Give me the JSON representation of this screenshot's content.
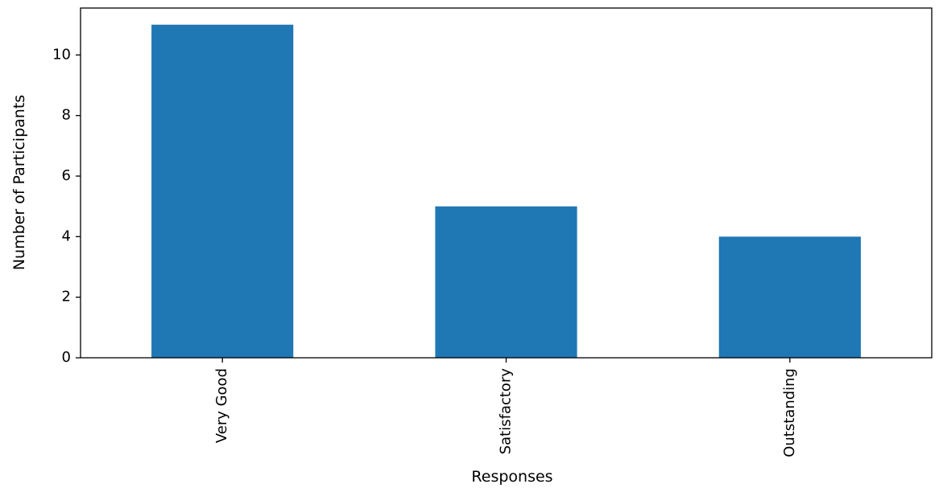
{
  "chart_data": {
    "type": "bar",
    "title": "",
    "categories": [
      "Very Good",
      "Satisfactory",
      "Outstanding"
    ],
    "values": [
      11,
      5,
      4
    ],
    "xlabel": "Responses",
    "ylabel": "Number of Participants",
    "ylim": [
      0,
      11.55
    ],
    "yticks": [
      0,
      2,
      4,
      6,
      8,
      10
    ],
    "grid": false,
    "legend": "none",
    "bar_color": "#1f77b4"
  }
}
